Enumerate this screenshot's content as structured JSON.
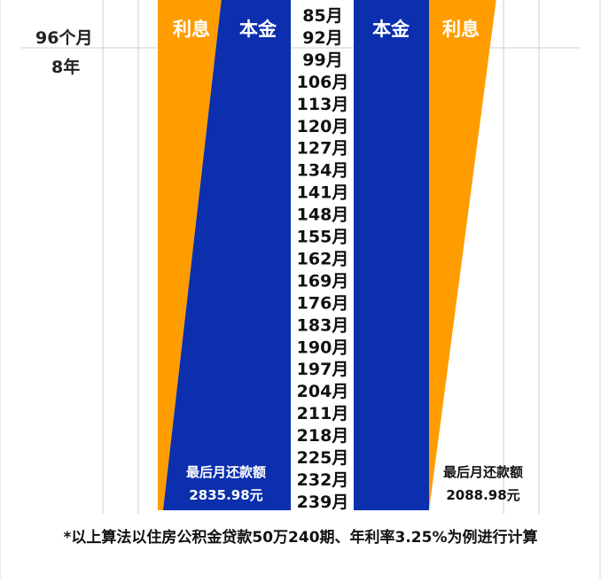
{
  "side_labels": {
    "months": "96个月",
    "years": "8年"
  },
  "footnote": "*以上算法以住房公积金贷款50万240期、年利率3.25%为例进行计算",
  "colors": {
    "principal": "#0b2fad",
    "interest": "#ff9d00",
    "grid": "#cfcfcf",
    "text_dark": "#111111",
    "text_light": "#ffffff"
  },
  "chart_data": {
    "type": "area",
    "month_labels": [
      "85月",
      "92月",
      "99月",
      "106月",
      "113月",
      "120月",
      "127月",
      "134月",
      "141月",
      "148月",
      "155月",
      "162月",
      "169月",
      "176月",
      "183月",
      "190月",
      "197月",
      "204月",
      "211月",
      "218月",
      "225月",
      "232月",
      "239月"
    ],
    "panels": [
      {
        "series": [
          {
            "name": "利息",
            "color": "#ff9d00"
          },
          {
            "name": "本金",
            "color": "#0b2fad"
          }
        ],
        "last_payment_label": "最后月还款额",
        "last_payment_value": "2835.98元"
      },
      {
        "series": [
          {
            "name": "本金",
            "color": "#0b2fad"
          },
          {
            "name": "利息",
            "color": "#ff9d00"
          }
        ],
        "last_payment_label": "最后月还款额",
        "last_payment_value": "2088.98元"
      }
    ]
  }
}
